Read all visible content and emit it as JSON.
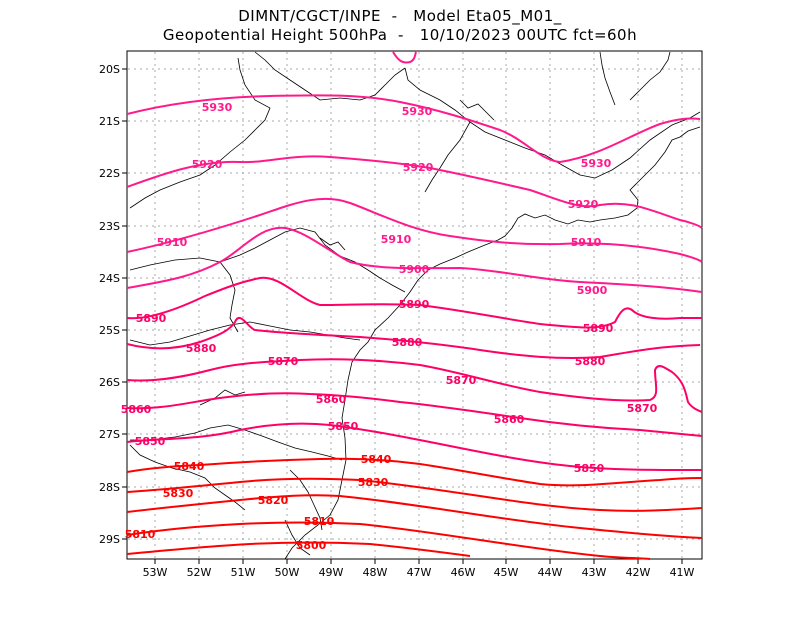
{
  "header": {
    "line1": "DIMNT/CGCT/INPE  -   Model Eta05_M01_",
    "line2": "Geopotential Height 500hPa  -   10/10/2023 00UTC fct=60h"
  },
  "map": {
    "lon_labels": [
      "53W",
      "52W",
      "51W",
      "50W",
      "49W",
      "48W",
      "47W",
      "46W",
      "45W",
      "44W",
      "43W",
      "42W",
      "41W"
    ],
    "lat_labels": [
      "20S",
      "21S",
      "22S",
      "23S",
      "24S",
      "25S",
      "26S",
      "27S",
      "28S",
      "29S"
    ],
    "colors": {
      "high": "#ff1a8c",
      "mid": "#ff0066",
      "low": "#ff0000",
      "coast": "#000000",
      "grid": "#aaaaaa"
    }
  },
  "contours": [
    {
      "value": 5930,
      "labels": [
        "5930",
        "5930",
        "5930"
      ]
    },
    {
      "value": 5920,
      "labels": [
        "5920",
        "5920",
        "5920"
      ]
    },
    {
      "value": 5910,
      "labels": [
        "5910",
        "5910",
        "5910"
      ]
    },
    {
      "value": 5900,
      "labels": [
        "5900",
        "5900"
      ]
    },
    {
      "value": 5890,
      "labels": [
        "5890",
        "5890",
        "5890"
      ]
    },
    {
      "value": 5880,
      "labels": [
        "5880",
        "5880",
        "5880"
      ]
    },
    {
      "value": 5870,
      "labels": [
        "5870",
        "5870",
        "5870"
      ]
    },
    {
      "value": 5860,
      "labels": [
        "5860",
        "5860",
        "5860"
      ]
    },
    {
      "value": 5850,
      "labels": [
        "5850",
        "5850",
        "5850"
      ]
    },
    {
      "value": 5840,
      "labels": [
        "5840",
        "5840"
      ]
    },
    {
      "value": 5830,
      "labels": [
        "5830",
        "5830"
      ]
    },
    {
      "value": 5820,
      "labels": [
        "5820"
      ]
    },
    {
      "value": 5810,
      "labels": [
        "5810",
        "5810"
      ]
    },
    {
      "value": 5800,
      "labels": [
        "5800"
      ]
    }
  ]
}
